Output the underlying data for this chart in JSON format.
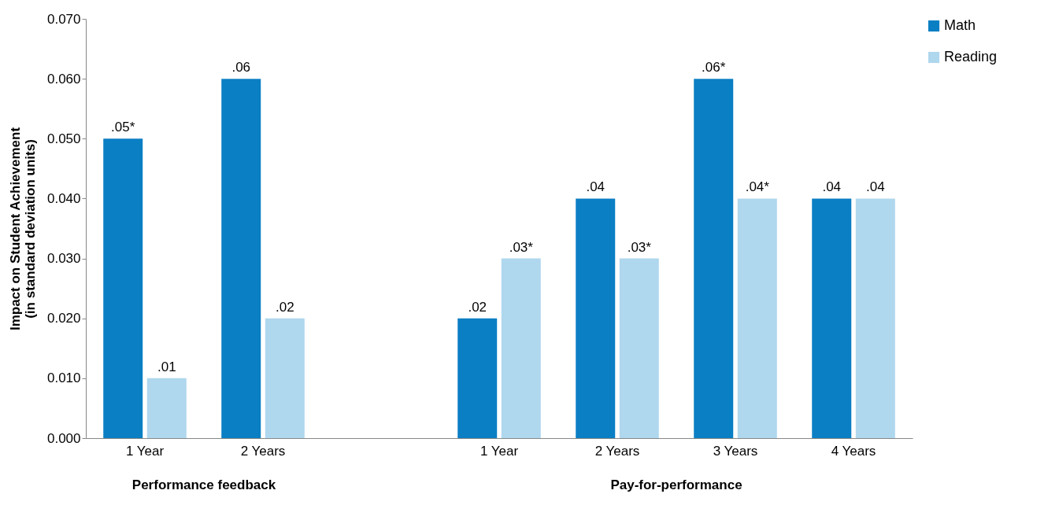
{
  "chart_data": {
    "type": "bar",
    "categories": [
      "1 Year",
      "2 Years",
      null,
      "1 Year",
      "2 Years",
      "3 Years",
      "4 Years"
    ],
    "series": [
      {
        "name": "Math",
        "color": "#0b7fc4",
        "values": [
          0.05,
          0.06,
          null,
          0.02,
          0.04,
          0.06,
          0.04
        ],
        "value_labels": [
          ".05*",
          ".06",
          null,
          ".02",
          ".04",
          ".06*",
          ".04"
        ]
      },
      {
        "name": "Reading",
        "color": "#afd7ee",
        "values": [
          0.01,
          0.02,
          null,
          0.03,
          0.03,
          0.04,
          0.04
        ],
        "value_labels": [
          ".01",
          ".02",
          null,
          ".03*",
          ".03*",
          ".04*",
          ".04"
        ]
      }
    ],
    "ylabel": "Impact on Student Achievement (in standard deviation units)",
    "ylim": [
      0,
      0.07
    ],
    "yticks": [
      {
        "value": 0,
        "label": "0.000"
      },
      {
        "value": 0.01,
        "label": "0.010"
      },
      {
        "value": 0.02,
        "label": "0.020"
      },
      {
        "value": 0.03,
        "label": "0.030"
      },
      {
        "value": 0.04,
        "label": "0.040"
      },
      {
        "value": 0.05,
        "label": "0.050"
      },
      {
        "value": 0.06,
        "label": "0.060"
      },
      {
        "value": 0.07,
        "label": "0.070"
      }
    ],
    "annotations": [
      "Performance feedback",
      "Pay-for-performance"
    ],
    "grid": false,
    "legend": "right"
  }
}
